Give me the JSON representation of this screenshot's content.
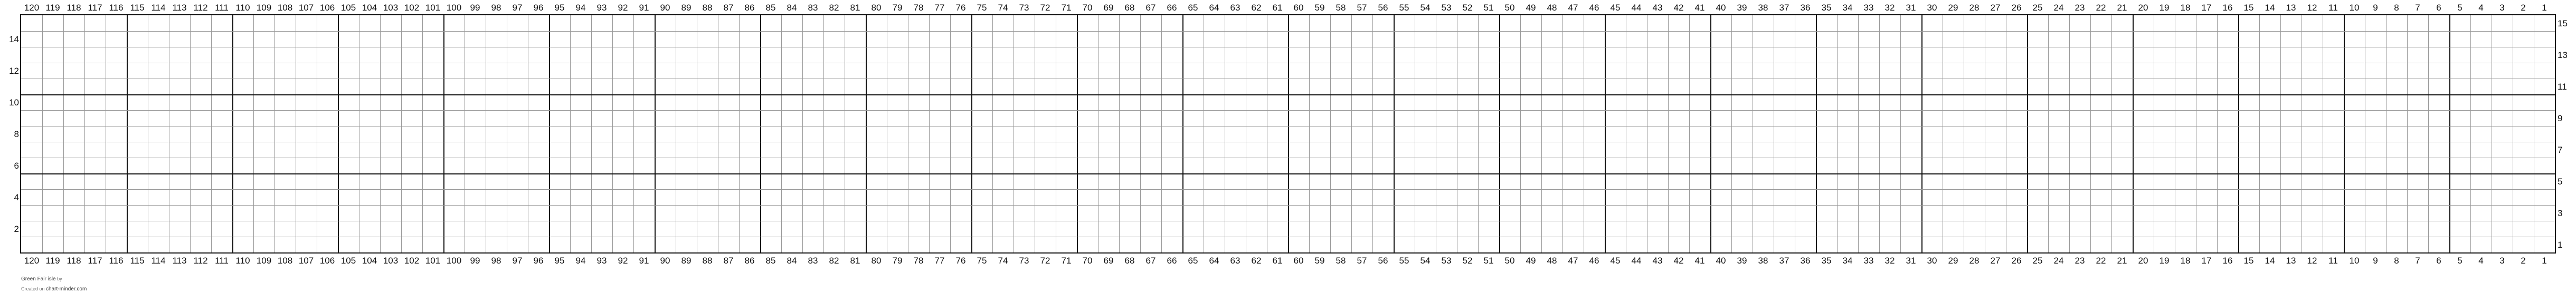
{
  "chart": {
    "columns": 120,
    "rows": 15,
    "major_every": 5,
    "column_labels": [
      120,
      119,
      118,
      117,
      116,
      115,
      114,
      113,
      112,
      111,
      110,
      109,
      108,
      107,
      106,
      105,
      104,
      103,
      102,
      101,
      100,
      99,
      98,
      97,
      96,
      95,
      94,
      93,
      92,
      91,
      90,
      89,
      88,
      87,
      86,
      85,
      84,
      83,
      82,
      81,
      80,
      79,
      78,
      77,
      76,
      75,
      74,
      73,
      72,
      71,
      70,
      69,
      68,
      67,
      66,
      65,
      64,
      63,
      62,
      61,
      60,
      59,
      58,
      57,
      56,
      55,
      54,
      53,
      52,
      51,
      50,
      49,
      48,
      47,
      46,
      45,
      44,
      43,
      42,
      41,
      40,
      39,
      38,
      37,
      36,
      35,
      34,
      33,
      32,
      31,
      30,
      29,
      28,
      27,
      26,
      25,
      24,
      23,
      22,
      21,
      20,
      19,
      18,
      17,
      16,
      15,
      14,
      13,
      12,
      11,
      10,
      9,
      8,
      7,
      6,
      5,
      4,
      3,
      2,
      1
    ],
    "left_row_labels": [
      14,
      12,
      10,
      8,
      6,
      4,
      2
    ],
    "right_row_labels": [
      15,
      13,
      11,
      9,
      7,
      5,
      3,
      1
    ],
    "line_color": "#999999",
    "major_line_color": "#111111"
  },
  "footer": {
    "title": "Green Fair isle",
    "by": "by",
    "created_on": "Created on",
    "site": "chart-minder.com"
  }
}
